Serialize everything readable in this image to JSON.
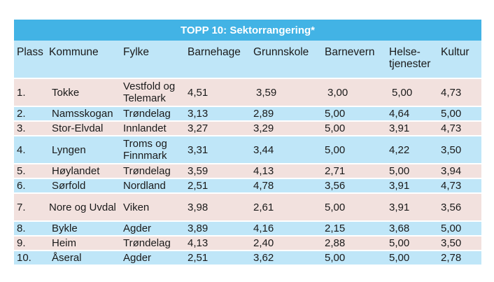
{
  "title": "TOPP 10: Sektorrangering*",
  "headers": [
    "Plass",
    "Kommune",
    "Fylke",
    "Barnehage",
    "Grunnskole",
    "Barnevern",
    "Helse-tjenester",
    "Kultur"
  ],
  "rows": [
    [
      "1.",
      "Tokke",
      "Vestfold og Telemark",
      "4,51",
      "3,59",
      "3,00",
      "5,00",
      "4,73"
    ],
    [
      "2.",
      "Namsskogan",
      "Trøndelag",
      "3,13",
      "2,89",
      "5,00",
      "4,64",
      "5,00"
    ],
    [
      "3.",
      "Stor-Elvdal",
      "Innlandet",
      "3,27",
      "3,29",
      "5,00",
      "3,91",
      "4,73"
    ],
    [
      "4.",
      "Lyngen",
      "Troms og Finnmark",
      "3,31",
      "3,44",
      "5,00",
      "4,22",
      "3,50"
    ],
    [
      "5.",
      "Høylandet",
      "Trøndelag",
      "3,59",
      "4,13",
      "2,71",
      "5,00",
      "3,94"
    ],
    [
      "6.",
      "Sørfold",
      "Nordland",
      "2,51",
      "4,78",
      "3,56",
      "3,91",
      "4,73"
    ],
    [
      "7.",
      "Nore og Uvdal",
      "Viken",
      "3,98",
      "2,61",
      "5,00",
      "3,91",
      "3,56"
    ],
    [
      "8.",
      "Bykle",
      "Agder",
      "3,89",
      "4,16",
      "2,15",
      "3,68",
      "5,00"
    ],
    [
      "9.",
      "Heim",
      "Trøndelag",
      "4,13",
      "2,40",
      "2,88",
      "5,00",
      "3,50"
    ],
    [
      "10.",
      "Åseral",
      "Agder",
      "2,51",
      "3,62",
      "5,00",
      "5,00",
      "2,78"
    ]
  ],
  "colors": {
    "title_bg": "#42b3e5",
    "header_bg": "#bfe6f8",
    "row_odd": "#f2e1de",
    "row_even": "#bfe6f8"
  }
}
